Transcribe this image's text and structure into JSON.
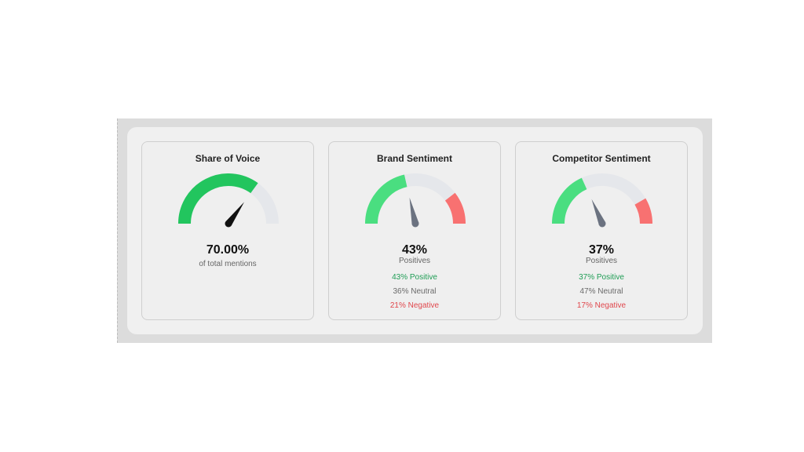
{
  "cards": [
    {
      "title": "Share of Voice",
      "value": 70.0,
      "value_label": "70.00%",
      "sub_label": "of total mentions",
      "mode": "single",
      "colors": {
        "fill": "#22c55e",
        "track": "#e5e7eb",
        "needle": "#111111"
      }
    },
    {
      "title": "Brand Sentiment",
      "value": 43,
      "value_label": "43%",
      "sub_label": "Positives",
      "mode": "sentiment",
      "segments": {
        "positive": 43,
        "neutral": 36,
        "negative": 21
      },
      "breakdown": {
        "positive": "43% Positive",
        "neutral": "36% Neutral",
        "negative": "21% Negative"
      },
      "colors": {
        "positive": "#4ade80",
        "neutral": "#e5e7eb",
        "negative": "#f87171",
        "needle": "#6b7280"
      }
    },
    {
      "title": "Competitor Sentiment",
      "value": 37,
      "value_label": "37%",
      "sub_label": "Positives",
      "mode": "sentiment",
      "segments": {
        "positive": 37,
        "neutral": 47,
        "negative": 17
      },
      "breakdown": {
        "positive": "37% Positive",
        "neutral": "47% Neutral",
        "negative": "17% Negative"
      },
      "colors": {
        "positive": "#4ade80",
        "neutral": "#e5e7eb",
        "negative": "#f87171",
        "needle": "#6b7280"
      }
    }
  ]
}
